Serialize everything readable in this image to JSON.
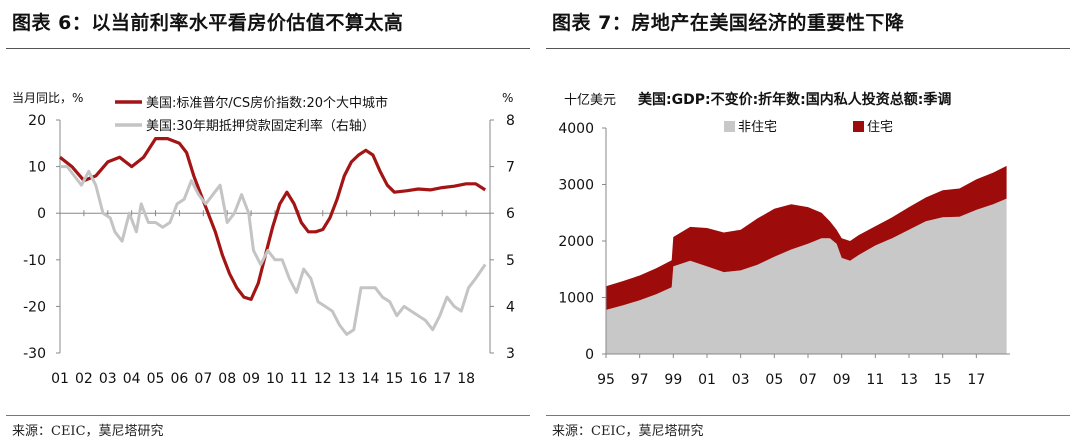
{
  "left": {
    "figure_title": "图表 6：以当前利率水平看房价估值不算太高",
    "source": "来源：CEIC，莫尼塔研究",
    "chart_data": {
      "type": "line",
      "title": "",
      "ylabel_left": "当月同比，%",
      "ylabel_right": "%",
      "ylim_left": [
        -30,
        20
      ],
      "ylim_right": [
        3,
        8
      ],
      "yticks_left": [
        "20",
        "10",
        "0",
        "-10",
        "-20",
        "-30"
      ],
      "yticks_right": [
        "8",
        "7",
        "6",
        "5",
        "4",
        "3"
      ],
      "xlim": [
        2001,
        2019
      ],
      "xticks": [
        "01",
        "02",
        "03",
        "04",
        "05",
        "06",
        "07",
        "08",
        "09",
        "10",
        "11",
        "12",
        "13",
        "14",
        "15",
        "16",
        "17",
        "18"
      ],
      "grid": false,
      "legend_position": "top-left",
      "series": [
        {
          "name": "美国:标准普尔/CS房价指数:20个大中城市",
          "axis": "left",
          "color": "#a31515",
          "x": [
            2001.0,
            2001.5,
            2002.0,
            2002.5,
            2003.0,
            2003.5,
            2004.0,
            2004.5,
            2005.0,
            2005.5,
            2006.0,
            2006.3,
            2006.6,
            2006.9,
            2007.2,
            2007.5,
            2007.8,
            2008.1,
            2008.4,
            2008.7,
            2009.0,
            2009.3,
            2009.6,
            2009.9,
            2010.2,
            2010.5,
            2010.8,
            2011.1,
            2011.4,
            2011.7,
            2012.0,
            2012.3,
            2012.6,
            2012.9,
            2013.2,
            2013.5,
            2013.8,
            2014.1,
            2014.4,
            2014.7,
            2015.0,
            2015.5,
            2016.0,
            2016.5,
            2017.0,
            2017.5,
            2018.0,
            2018.4,
            2018.8
          ],
          "y": [
            12,
            10,
            7,
            8,
            11,
            12,
            10,
            12,
            16,
            16,
            15,
            13,
            8,
            4,
            0,
            -4,
            -9,
            -13,
            -16,
            -18,
            -18.5,
            -15,
            -9,
            -3,
            2,
            4.5,
            2,
            -2,
            -4,
            -4,
            -3.5,
            -1,
            3,
            8,
            11,
            12.5,
            13.5,
            12.5,
            9,
            6,
            4.5,
            4.8,
            5.2,
            5.0,
            5.5,
            5.8,
            6.3,
            6.3,
            5.0
          ]
        },
        {
          "name": "美国:30年期抵押贷款固定利率（右轴）",
          "axis": "right",
          "color": "#c4c4c4",
          "x": [
            2001.0,
            2001.3,
            2001.6,
            2001.9,
            2002.2,
            2002.5,
            2002.8,
            2003.1,
            2003.3,
            2003.6,
            2003.9,
            2004.2,
            2004.4,
            2004.7,
            2005.0,
            2005.3,
            2005.6,
            2005.9,
            2006.2,
            2006.5,
            2006.8,
            2007.1,
            2007.4,
            2007.7,
            2008.0,
            2008.3,
            2008.6,
            2008.9,
            2009.1,
            2009.4,
            2009.7,
            2010.0,
            2010.3,
            2010.6,
            2010.9,
            2011.2,
            2011.5,
            2011.8,
            2012.1,
            2012.4,
            2012.7,
            2013.0,
            2013.3,
            2013.6,
            2013.9,
            2014.2,
            2014.5,
            2014.8,
            2015.1,
            2015.4,
            2015.7,
            2016.0,
            2016.3,
            2016.6,
            2016.9,
            2017.2,
            2017.5,
            2017.8,
            2018.1,
            2018.4,
            2018.8
          ],
          "y": [
            7.0,
            7.0,
            6.8,
            6.6,
            6.9,
            6.6,
            6.0,
            5.9,
            5.6,
            5.4,
            6.0,
            5.6,
            6.2,
            5.8,
            5.8,
            5.7,
            5.8,
            6.2,
            6.3,
            6.7,
            6.4,
            6.2,
            6.4,
            6.6,
            5.8,
            6.0,
            6.4,
            6.0,
            5.2,
            4.9,
            5.2,
            5.0,
            5.0,
            4.6,
            4.3,
            4.8,
            4.6,
            4.1,
            4.0,
            3.9,
            3.6,
            3.4,
            3.5,
            4.4,
            4.4,
            4.4,
            4.2,
            4.1,
            3.8,
            4.0,
            3.9,
            3.8,
            3.7,
            3.5,
            3.8,
            4.2,
            4.0,
            3.9,
            4.4,
            4.6,
            4.9
          ]
        }
      ]
    }
  },
  "right": {
    "figure_title": "图表 7：房地产在美国经济的重要性下降",
    "source": "来源：CEIC，莫尼塔研究",
    "chart_data": {
      "type": "area",
      "title": "美国:GDP:不变价:折年数:国内私人投资总额:季调",
      "ylabel": "十亿美元",
      "ylim": [
        0,
        4000
      ],
      "yticks": [
        "4000",
        "3000",
        "2000",
        "1000",
        "0"
      ],
      "xlim": [
        1995,
        2019
      ],
      "xticks": [
        "95",
        "97",
        "99",
        "01",
        "03",
        "05",
        "07",
        "09",
        "11",
        "13",
        "15",
        "17"
      ],
      "grid": false,
      "stacked": true,
      "legend_position": "top",
      "x": [
        1995,
        1996,
        1997,
        1998,
        1998.9,
        1999.0,
        2000,
        2001,
        2002,
        2003,
        2004,
        2005,
        2006,
        2007,
        2007.8,
        2008.3,
        2008.7,
        2009.0,
        2009.5,
        2010,
        2011,
        2012,
        2013,
        2014,
        2015,
        2016,
        2017,
        2018,
        2018.8
      ],
      "series": [
        {
          "name": "非住宅",
          "color": "#c8c8c8",
          "values": [
            780,
            860,
            950,
            1060,
            1180,
            1550,
            1650,
            1550,
            1450,
            1480,
            1580,
            1720,
            1850,
            1950,
            2050,
            2050,
            1950,
            1700,
            1650,
            1750,
            1920,
            2050,
            2200,
            2350,
            2420,
            2430,
            2550,
            2650,
            2750
          ]
        },
        {
          "name": "住宅",
          "color": "#9e0b0b",
          "values": [
            420,
            430,
            440,
            460,
            480,
            520,
            600,
            680,
            700,
            720,
            820,
            850,
            800,
            650,
            450,
            300,
            250,
            350,
            350,
            350,
            340,
            370,
            400,
            420,
            480,
            500,
            540,
            560,
            580
          ]
        }
      ]
    }
  }
}
